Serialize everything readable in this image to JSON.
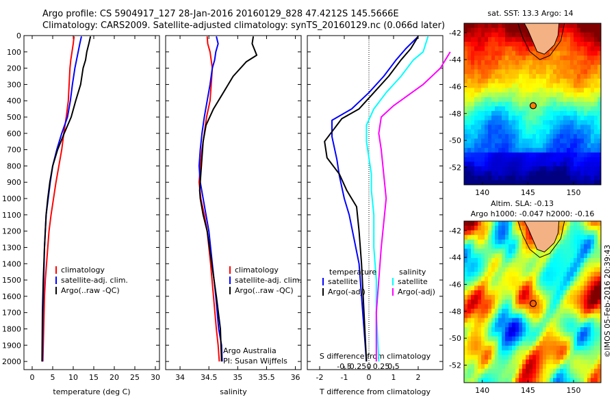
{
  "header": {
    "line1": "Argo profile: CS 5904917_127 28-Jan-2016 20160129_828 47.4212S 145.5666E",
    "line2": "Climatology: CARS2009. Satellite-adjusted climatology: synTS_20160129.nc (0.066d later)"
  },
  "colors": {
    "climatology": "#ff0000",
    "satellite": "#0000ff",
    "argo": "#000000",
    "satellite_salinity": "#00ffff",
    "argo_salinity": "#ff00ff"
  },
  "chart_data": [
    {
      "type": "line",
      "panel": "temperature",
      "xlabel": "temperature (deg C)",
      "ylabel": "",
      "xlim": [
        -2,
        31
      ],
      "ylim": [
        2050,
        0
      ],
      "xticks": [
        0,
        5,
        10,
        15,
        20,
        25,
        30
      ],
      "yticks": [
        0,
        100,
        200,
        300,
        400,
        500,
        600,
        700,
        800,
        900,
        1000,
        1100,
        1200,
        1300,
        1400,
        1500,
        1600,
        1700,
        1800,
        1900,
        2000
      ],
      "legend": {
        "position": "lower-center",
        "entries": [
          "climatology",
          "satellite-adj. clim.",
          "Argo(..raw -QC)"
        ]
      },
      "series": [
        {
          "name": "climatology",
          "color": "#ff0000",
          "x": [
            10.2,
            10.0,
            9.7,
            9.4,
            9.2,
            9.0,
            8.8,
            8.3,
            7.7,
            7.2,
            6.5,
            5.8,
            5.2,
            4.6,
            4.1,
            3.8,
            3.5,
            3.2,
            3.0,
            2.8,
            2.6
          ],
          "y": [
            5,
            50,
            100,
            150,
            200,
            300,
            400,
            500,
            600,
            700,
            800,
            900,
            1000,
            1100,
            1200,
            1300,
            1400,
            1500,
            1600,
            1800,
            2000
          ]
        },
        {
          "name": "satellite-adj. clim.",
          "color": "#0000ff",
          "x": [
            12.0,
            11.6,
            11.2,
            10.8,
            10.4,
            9.8,
            9.3,
            8.6,
            7.2,
            6.0,
            5.0,
            4.4,
            3.9,
            3.4,
            3.0,
            2.8,
            2.6,
            2.5
          ],
          "y": [
            5,
            50,
            100,
            150,
            200,
            300,
            400,
            500,
            600,
            700,
            800,
            900,
            1000,
            1100,
            1300,
            1500,
            1700,
            2000
          ]
        },
        {
          "name": "Argo(..raw -QC)",
          "color": "#000000",
          "x": [
            14.2,
            13.8,
            13.3,
            13.0,
            12.4,
            11.8,
            10.6,
            9.5,
            7.8,
            6.2,
            5.0,
            4.3,
            3.8,
            3.4,
            3.0,
            2.7,
            2.5,
            2.4
          ],
          "y": [
            5,
            50,
            100,
            150,
            200,
            300,
            400,
            500,
            600,
            700,
            800,
            900,
            1000,
            1100,
            1300,
            1500,
            1700,
            2000
          ]
        }
      ]
    },
    {
      "type": "line",
      "panel": "salinity",
      "xlabel": "salinity",
      "ylabel": "",
      "xlim": [
        33.75,
        36.1
      ],
      "ylim": [
        2050,
        0
      ],
      "xticks": [
        34,
        34.5,
        35,
        35.5,
        36
      ],
      "legend": {
        "position": "lower-center",
        "entries": [
          "climatology",
          "satellite-adj. clim.",
          "Argo(..raw -QC)"
        ]
      },
      "annotations": [
        "Argo Australia",
        "PI: Susan Wijffels"
      ],
      "series": [
        {
          "name": "climatology",
          "color": "#ff0000",
          "x": [
            34.47,
            34.48,
            34.52,
            34.56,
            34.54,
            34.52,
            34.46,
            34.42,
            34.38,
            34.35,
            34.33,
            34.36,
            34.42,
            34.47,
            34.53,
            34.58,
            34.63,
            34.66,
            34.68
          ],
          "y": [
            5,
            50,
            100,
            200,
            300,
            400,
            500,
            600,
            700,
            800,
            900,
            1000,
            1100,
            1200,
            1400,
            1600,
            1800,
            1900,
            2000
          ]
        },
        {
          "name": "satellite-adj. clim.",
          "color": "#0000ff",
          "x": [
            34.63,
            34.66,
            34.62,
            34.6,
            34.56,
            34.52,
            34.47,
            34.42,
            34.38,
            34.35,
            34.33,
            34.35,
            34.4,
            34.45,
            34.5,
            34.56,
            34.62,
            34.67,
            34.72,
            34.73
          ],
          "y": [
            5,
            50,
            100,
            150,
            200,
            300,
            400,
            500,
            600,
            700,
            800,
            900,
            1000,
            1100,
            1200,
            1400,
            1600,
            1800,
            1900,
            2000
          ]
        },
        {
          "name": "Argo(..raw -QC)",
          "color": "#000000",
          "x": [
            35.27,
            35.25,
            35.33,
            35.15,
            34.92,
            34.75,
            34.58,
            34.45,
            34.4,
            34.38,
            34.36,
            34.34,
            34.35,
            34.4,
            34.47,
            34.55,
            34.63,
            34.7,
            34.72
          ],
          "y": [
            5,
            50,
            120,
            160,
            250,
            350,
            450,
            550,
            650,
            750,
            850,
            950,
            1000,
            1100,
            1200,
            1400,
            1600,
            1800,
            2000
          ]
        }
      ]
    },
    {
      "type": "line",
      "panel": "difference",
      "xlabel": "T difference from climatology",
      "top_xlabel": "S difference from climatology",
      "xlim": [
        -2.5,
        3
      ],
      "ylim": [
        2050,
        0
      ],
      "xticks": [
        -2,
        -1,
        0,
        1,
        2
      ],
      "top_xticks": [
        "-0.5",
        "-0.25",
        "0",
        "0.25",
        "0.5"
      ],
      "legend": {
        "position": "lower-center",
        "headers": [
          "temperature",
          "salinity"
        ],
        "entries": [
          "satellite",
          "Argo(-adj)",
          "satellite",
          "Argo(-adj)"
        ]
      },
      "series": [
        {
          "name": "temperature satellite",
          "color": "#0000ff",
          "x": [
            2.0,
            1.5,
            1.1,
            0.6,
            0.0,
            -0.7,
            -1.5,
            -1.5,
            -1.3,
            -1.2,
            -1.0,
            -0.8,
            -0.6,
            -0.4,
            -0.3,
            -0.2,
            -0.1
          ],
          "y": [
            5,
            80,
            150,
            250,
            350,
            450,
            520,
            620,
            760,
            860,
            1000,
            1100,
            1250,
            1400,
            1600,
            1800,
            2000
          ]
        },
        {
          "name": "temperature Argo(-adj)",
          "color": "#000000",
          "x": [
            2.0,
            1.7,
            1.3,
            0.8,
            0.2,
            -0.4,
            -1.1,
            -1.8,
            -1.7,
            -1.2,
            -0.9,
            -0.5,
            -0.4,
            -0.3,
            -0.2,
            -0.1
          ],
          "y": [
            5,
            80,
            150,
            250,
            350,
            450,
            510,
            650,
            750,
            850,
            950,
            1050,
            1200,
            1400,
            1700,
            2000
          ]
        },
        {
          "name": "salinity satellite",
          "color": "#00ffff",
          "x": [
            2.4,
            2.2,
            1.8,
            1.3,
            0.7,
            0.2,
            -0.1,
            -0.1,
            0.0,
            0.1,
            0.1,
            0.2,
            0.2,
            0.3,
            0.3,
            0.4
          ],
          "y": [
            5,
            100,
            150,
            250,
            350,
            450,
            550,
            650,
            750,
            850,
            950,
            1100,
            1300,
            1500,
            1700,
            2000
          ]
        },
        {
          "name": "salinity Argo(-adj)",
          "color": "#ff00ff",
          "x": [
            3.3,
            2.9,
            2.2,
            1.0,
            0.5,
            0.4,
            0.5,
            0.6,
            0.7,
            0.6,
            0.5,
            0.4,
            0.3,
            0.3
          ],
          "y": [
            100,
            200,
            300,
            430,
            500,
            600,
            700,
            850,
            1000,
            1150,
            1300,
            1500,
            1700,
            2000
          ]
        }
      ]
    },
    {
      "type": "heatmap",
      "panel": "sst-map",
      "title": "sat. SST: 13.3  Argo: 14",
      "xticks": [
        140,
        145,
        150
      ],
      "yticks": [
        -42,
        -44,
        -46,
        -48,
        -50,
        -52
      ],
      "xlim": [
        138,
        153
      ],
      "ylim": [
        -53.3,
        -41.3
      ],
      "argo_position": {
        "lon": 145.57,
        "lat": -47.42
      }
    },
    {
      "type": "heatmap",
      "panel": "sla-map",
      "title": "Altim. SLA: -0.13",
      "subtitle": "Argo h1000: -0.047 h2000: -0.16",
      "xticks": [
        140,
        145,
        150
      ],
      "yticks": [
        -42,
        -44,
        -46,
        -48,
        -50,
        -52
      ],
      "xlim": [
        138,
        153
      ],
      "ylim": [
        -53.3,
        -41.3
      ],
      "argo_position": {
        "lon": 145.57,
        "lat": -47.42
      }
    }
  ],
  "credit": "©IMOS 05-Feb-2016 20:39:43"
}
